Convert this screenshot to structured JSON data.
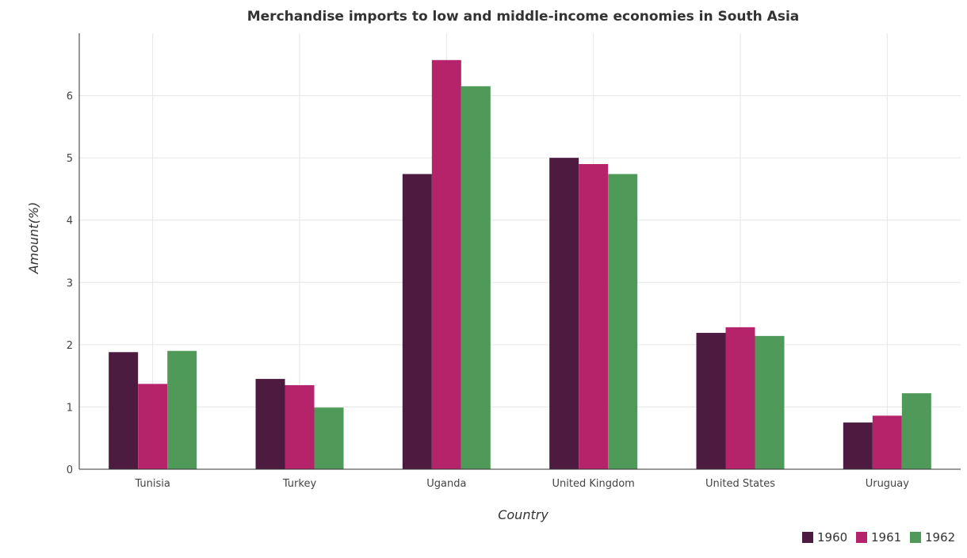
{
  "chart_data": {
    "type": "bar",
    "title": "Merchandise imports to low and middle-income economies in South Asia",
    "xlabel": "Country",
    "ylabel": "Amount(%)",
    "categories": [
      "Tunisia",
      "Turkey",
      "Uganda",
      "United Kingdom",
      "United States",
      "Uruguay"
    ],
    "series": [
      {
        "name": "1960",
        "color": "#4d1a40",
        "values": [
          1.88,
          1.45,
          4.74,
          5.0,
          2.19,
          0.75
        ]
      },
      {
        "name": "1961",
        "color": "#b5246a",
        "values": [
          1.37,
          1.35,
          6.57,
          4.9,
          2.28,
          0.86
        ]
      },
      {
        "name": "1962",
        "color": "#4f9a58",
        "values": [
          1.9,
          0.99,
          6.15,
          4.74,
          2.14,
          1.22
        ]
      }
    ],
    "ylim": [
      0,
      7
    ],
    "yticks": [
      0,
      1,
      2,
      3,
      4,
      5,
      6
    ],
    "grid": true,
    "legend_position": "bottom-right"
  }
}
